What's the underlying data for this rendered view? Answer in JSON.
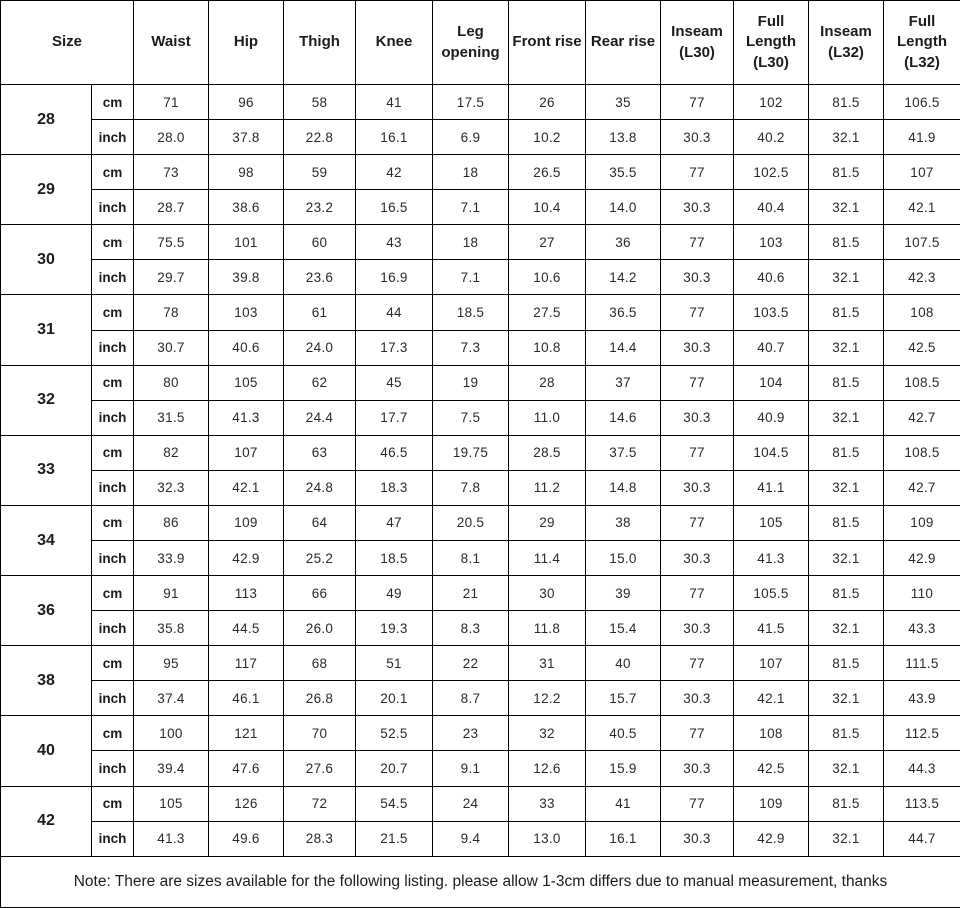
{
  "table": {
    "header": {
      "size_label": "Size",
      "columns": [
        "Waist",
        "Hip",
        "Thigh",
        "Knee",
        "Leg opening",
        "Front rise",
        "Rear rise",
        "Inseam (L30)",
        "Full Length (L30)",
        "Inseam (L32)",
        "Full Length (L32)"
      ]
    },
    "unit_labels": [
      "cm",
      "inch"
    ],
    "rows": [
      {
        "size": "28",
        "cm": [
          "71",
          "96",
          "58",
          "41",
          "17.5",
          "26",
          "35",
          "77",
          "102",
          "81.5",
          "106.5"
        ],
        "inch": [
          "28.0",
          "37.8",
          "22.8",
          "16.1",
          "6.9",
          "10.2",
          "13.8",
          "30.3",
          "40.2",
          "32.1",
          "41.9"
        ]
      },
      {
        "size": "29",
        "cm": [
          "73",
          "98",
          "59",
          "42",
          "18",
          "26.5",
          "35.5",
          "77",
          "102.5",
          "81.5",
          "107"
        ],
        "inch": [
          "28.7",
          "38.6",
          "23.2",
          "16.5",
          "7.1",
          "10.4",
          "14.0",
          "30.3",
          "40.4",
          "32.1",
          "42.1"
        ]
      },
      {
        "size": "30",
        "cm": [
          "75.5",
          "101",
          "60",
          "43",
          "18",
          "27",
          "36",
          "77",
          "103",
          "81.5",
          "107.5"
        ],
        "inch": [
          "29.7",
          "39.8",
          "23.6",
          "16.9",
          "7.1",
          "10.6",
          "14.2",
          "30.3",
          "40.6",
          "32.1",
          "42.3"
        ]
      },
      {
        "size": "31",
        "cm": [
          "78",
          "103",
          "61",
          "44",
          "18.5",
          "27.5",
          "36.5",
          "77",
          "103.5",
          "81.5",
          "108"
        ],
        "inch": [
          "30.7",
          "40.6",
          "24.0",
          "17.3",
          "7.3",
          "10.8",
          "14.4",
          "30.3",
          "40.7",
          "32.1",
          "42.5"
        ]
      },
      {
        "size": "32",
        "cm": [
          "80",
          "105",
          "62",
          "45",
          "19",
          "28",
          "37",
          "77",
          "104",
          "81.5",
          "108.5"
        ],
        "inch": [
          "31.5",
          "41.3",
          "24.4",
          "17.7",
          "7.5",
          "11.0",
          "14.6",
          "30.3",
          "40.9",
          "32.1",
          "42.7"
        ]
      },
      {
        "size": "33",
        "cm": [
          "82",
          "107",
          "63",
          "46.5",
          "19.75",
          "28.5",
          "37.5",
          "77",
          "104.5",
          "81.5",
          "108.5"
        ],
        "inch": [
          "32.3",
          "42.1",
          "24.8",
          "18.3",
          "7.8",
          "11.2",
          "14.8",
          "30.3",
          "41.1",
          "32.1",
          "42.7"
        ]
      },
      {
        "size": "34",
        "cm": [
          "86",
          "109",
          "64",
          "47",
          "20.5",
          "29",
          "38",
          "77",
          "105",
          "81.5",
          "109"
        ],
        "inch": [
          "33.9",
          "42.9",
          "25.2",
          "18.5",
          "8.1",
          "11.4",
          "15.0",
          "30.3",
          "41.3",
          "32.1",
          "42.9"
        ]
      },
      {
        "size": "36",
        "cm": [
          "91",
          "113",
          "66",
          "49",
          "21",
          "30",
          "39",
          "77",
          "105.5",
          "81.5",
          "110"
        ],
        "inch": [
          "35.8",
          "44.5",
          "26.0",
          "19.3",
          "8.3",
          "11.8",
          "15.4",
          "30.3",
          "41.5",
          "32.1",
          "43.3"
        ]
      },
      {
        "size": "38",
        "cm": [
          "95",
          "117",
          "68",
          "51",
          "22",
          "31",
          "40",
          "77",
          "107",
          "81.5",
          "111.5"
        ],
        "inch": [
          "37.4",
          "46.1",
          "26.8",
          "20.1",
          "8.7",
          "12.2",
          "15.7",
          "30.3",
          "42.1",
          "32.1",
          "43.9"
        ]
      },
      {
        "size": "40",
        "cm": [
          "100",
          "121",
          "70",
          "52.5",
          "23",
          "32",
          "40.5",
          "77",
          "108",
          "81.5",
          "112.5"
        ],
        "inch": [
          "39.4",
          "47.6",
          "27.6",
          "20.7",
          "9.1",
          "12.6",
          "15.9",
          "30.3",
          "42.5",
          "32.1",
          "44.3"
        ]
      },
      {
        "size": "42",
        "cm": [
          "105",
          "126",
          "72",
          "54.5",
          "24",
          "33",
          "41",
          "77",
          "109",
          "81.5",
          "113.5"
        ],
        "inch": [
          "41.3",
          "49.6",
          "28.3",
          "21.5",
          "9.4",
          "13.0",
          "16.1",
          "30.3",
          "42.9",
          "32.1",
          "44.7"
        ]
      }
    ],
    "note": "Note: There are sizes available for the following listing. please allow 1-3cm differs due to manual measurement, thanks"
  }
}
